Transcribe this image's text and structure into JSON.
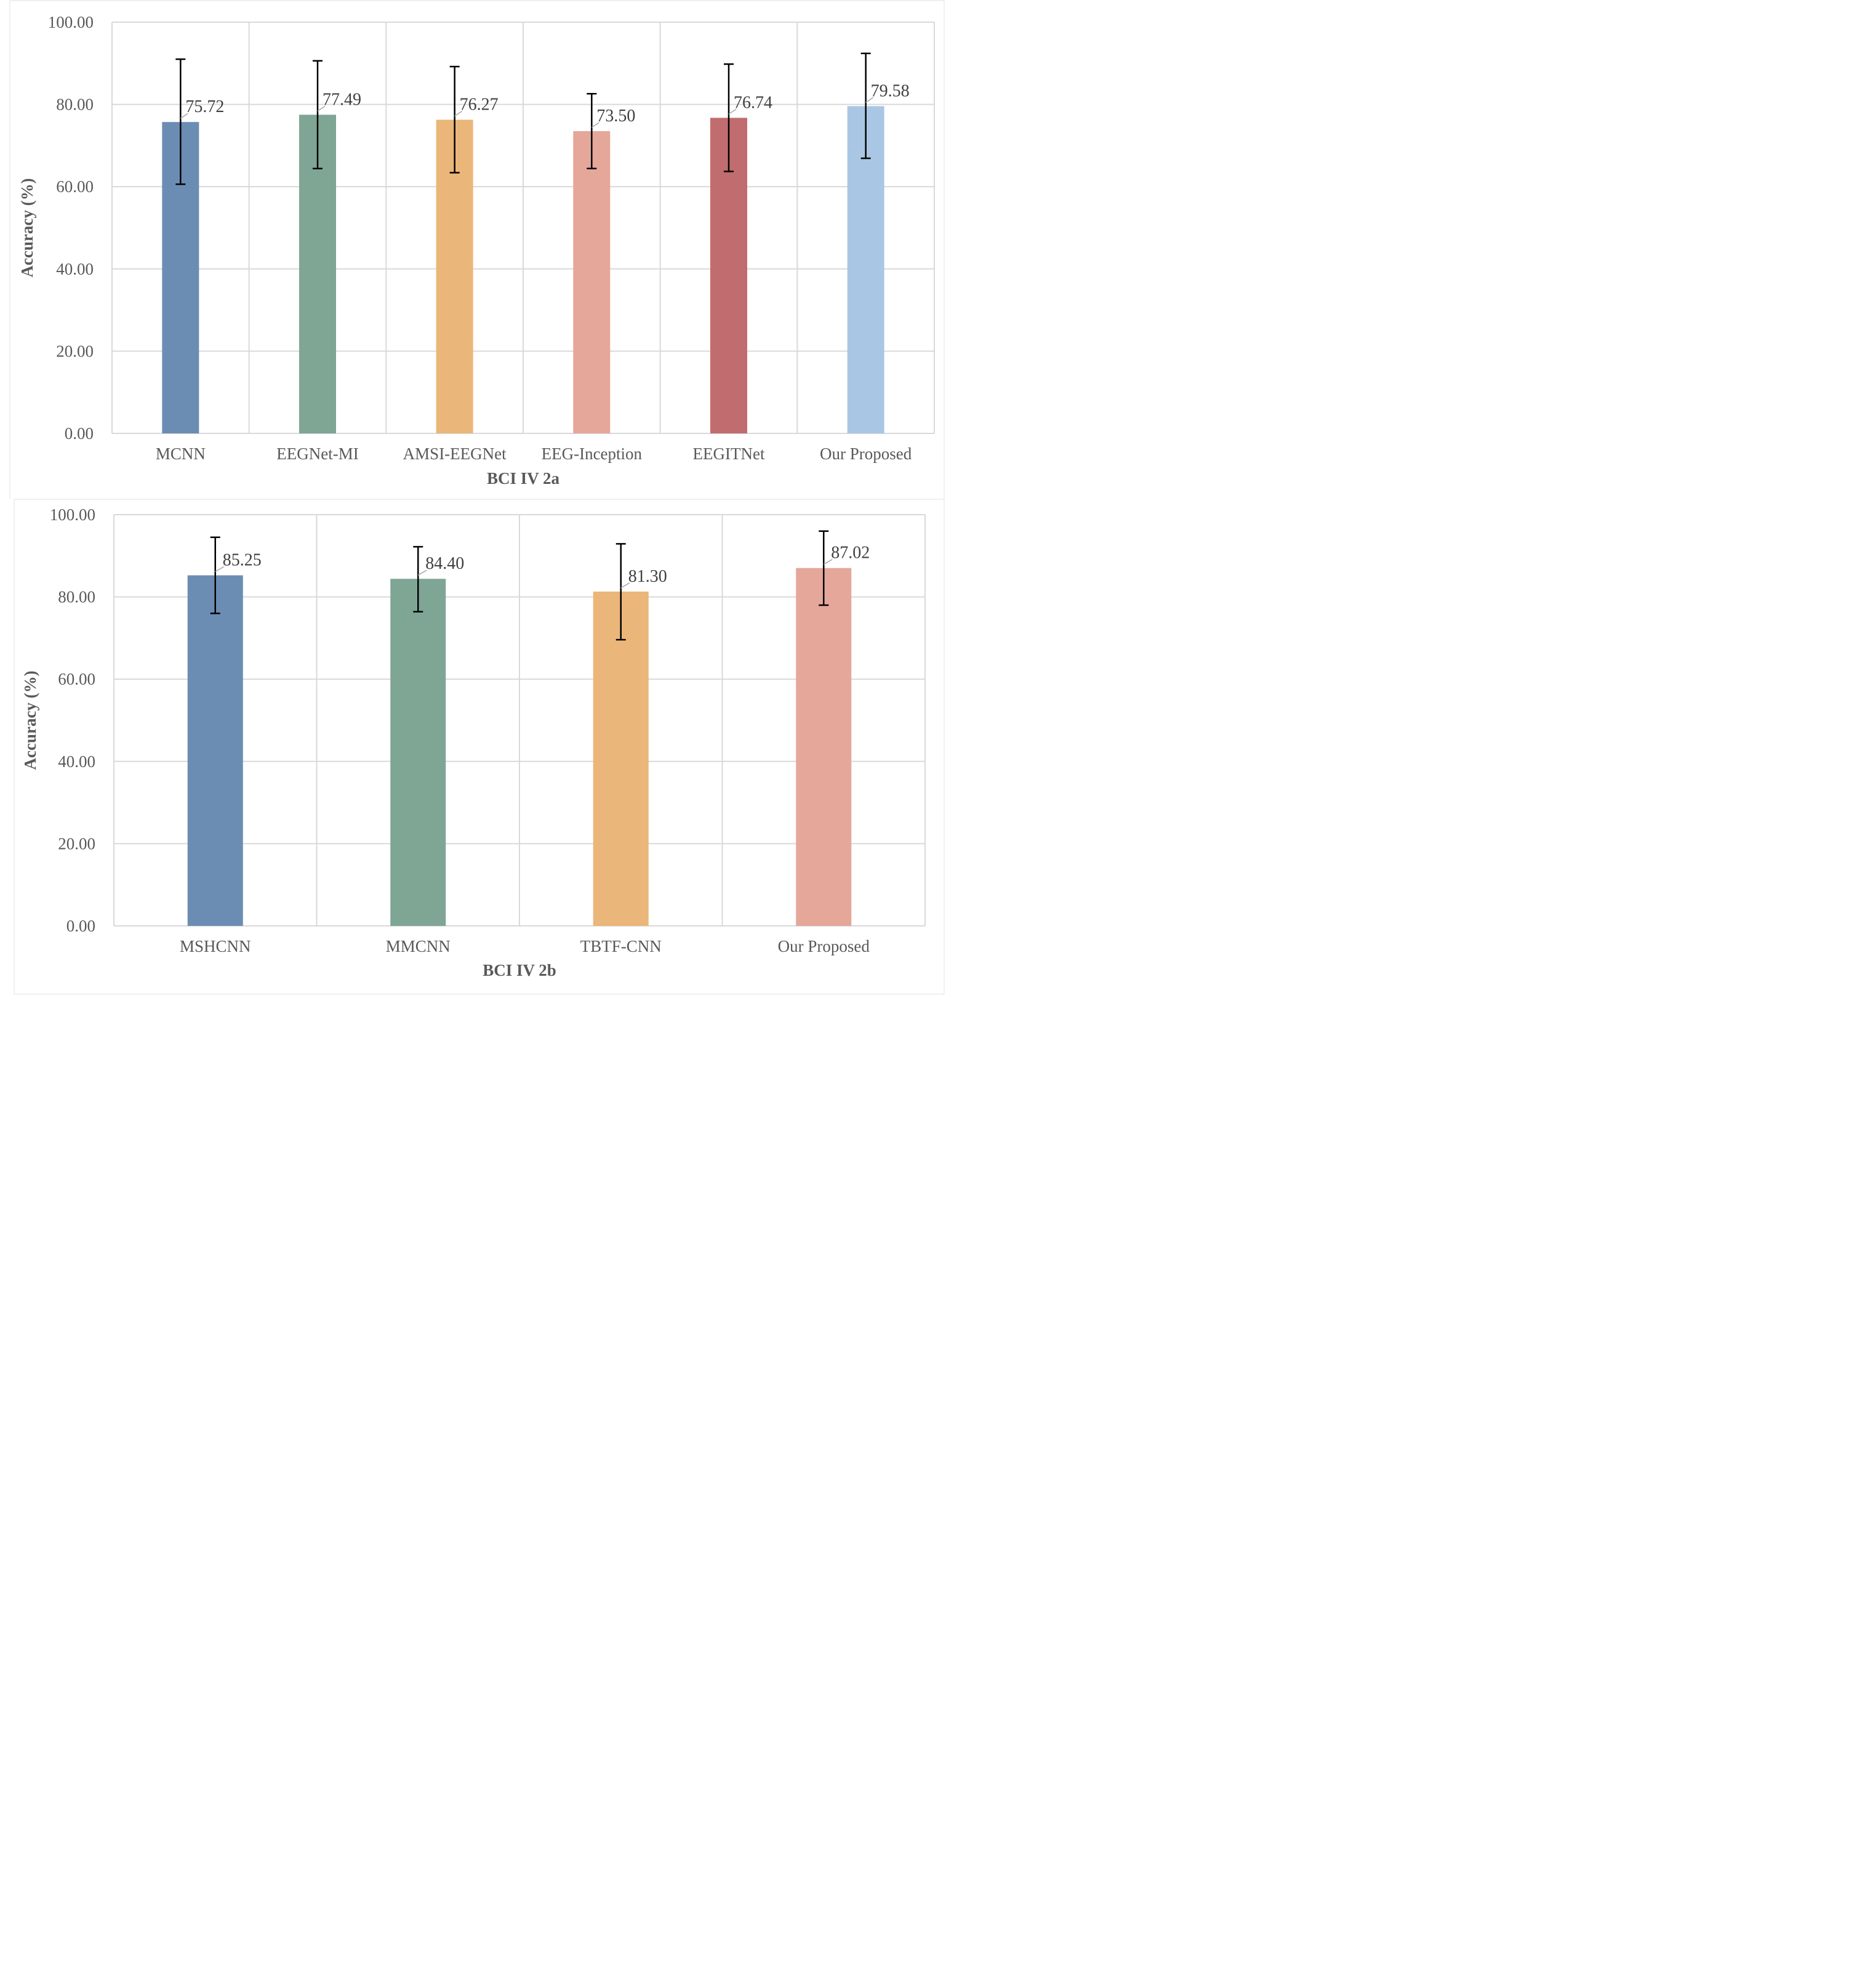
{
  "chart_data": [
    {
      "type": "bar",
      "title": "",
      "xlabel": "BCI IV 2a",
      "ylabel": "Accuracy (%)",
      "ylim": [
        0,
        100
      ],
      "yticks": [
        "0.00",
        "20.00",
        "40.00",
        "60.00",
        "80.00",
        "100.00"
      ],
      "grid": true,
      "categories": [
        "MCNN",
        "EEGNet-MI",
        "AMSI-EEGNet",
        "EEG-Inception",
        "EEGITNet",
        "Our Proposed"
      ],
      "values": [
        75.72,
        77.49,
        76.27,
        73.5,
        76.74,
        79.58
      ],
      "value_labels": [
        "75.72",
        "77.49",
        "76.27",
        "73.50",
        "76.74",
        "79.58"
      ],
      "error_low": [
        60.6,
        64.4,
        63.4,
        64.4,
        63.7,
        66.9
      ],
      "error_high": [
        91.0,
        90.6,
        89.2,
        82.6,
        89.8,
        92.4
      ],
      "colors": [
        "#6C8DB3",
        "#7FA595",
        "#EBB679",
        "#E5A79A",
        "#C16C6F",
        "#A9C7E4"
      ]
    },
    {
      "type": "bar",
      "title": "",
      "xlabel": "BCI IV 2b",
      "ylabel": "Accuracy (%)",
      "ylim": [
        0,
        100
      ],
      "yticks": [
        "0.00",
        "20.00",
        "40.00",
        "60.00",
        "80.00",
        "100.00"
      ],
      "grid": true,
      "categories": [
        "MSHCNN",
        "MMCNN",
        "TBTF-CNN",
        "Our Proposed"
      ],
      "values": [
        85.25,
        84.4,
        81.3,
        87.02
      ],
      "value_labels": [
        "85.25",
        "84.40",
        "81.30",
        "87.02"
      ],
      "error_low": [
        76.0,
        76.4,
        69.6,
        78.0
      ],
      "error_high": [
        94.5,
        92.2,
        92.9,
        96.0
      ],
      "colors": [
        "#6C8DB3",
        "#7FA595",
        "#EBB679",
        "#E5A79A"
      ]
    }
  ]
}
